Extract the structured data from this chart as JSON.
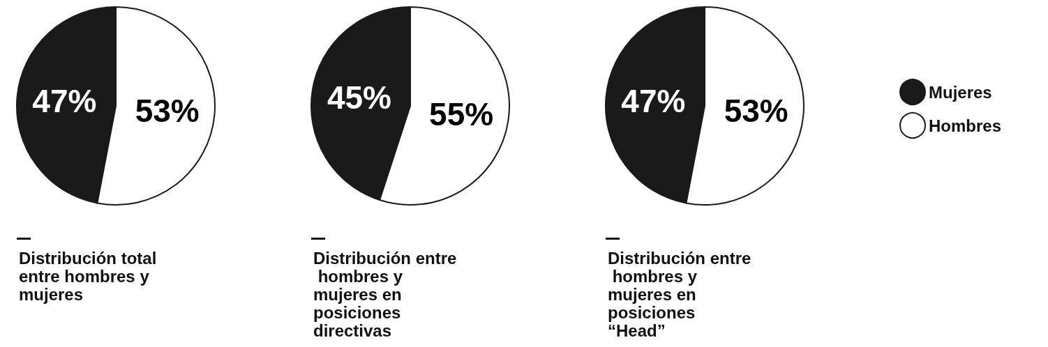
{
  "chart_data": [
    {
      "type": "pie",
      "title": "Distribución total entre hombres y mujeres",
      "categories": [
        null,
        null
      ],
      "values": [
        47,
        53
      ],
      "colors": [
        "#1a1a1a",
        "#ffffff"
      ],
      "value_labels": [
        "47%",
        "53%"
      ],
      "legend": false
    },
    {
      "type": "pie",
      "title": "Distribución entre hombres y mujeres en posiciones directivas",
      "categories": [
        null,
        null
      ],
      "values": [
        45,
        55
      ],
      "colors": [
        "#1a1a1a",
        "#ffffff"
      ],
      "value_labels": [
        "45%",
        "55%"
      ],
      "legend": false
    },
    {
      "type": "pie",
      "title": "Distribución entre hombres y mujeres en posiciones “Head”",
      "categories": [
        "Mujeres",
        "Hombres"
      ],
      "values": [
        47,
        53
      ],
      "colors": [
        "#1a1a1a",
        "#ffffff"
      ],
      "value_labels": [
        "47%",
        "53%"
      ],
      "legend": "right"
    }
  ]
}
